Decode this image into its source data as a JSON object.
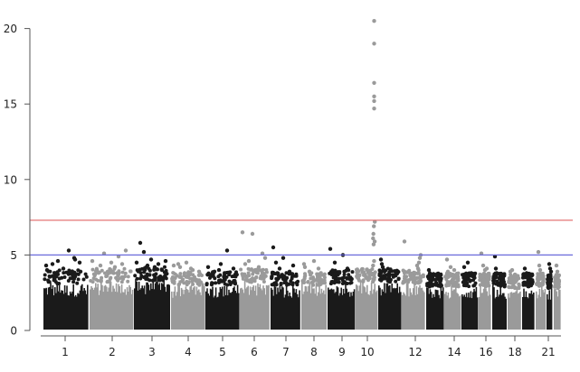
{
  "chart_data": {
    "type": "scatter",
    "subtype": "manhattan",
    "title": "",
    "xlabel": "",
    "ylabel": "",
    "ylim": [
      0,
      21
    ],
    "y_ticks": [
      0,
      5,
      10,
      15,
      20
    ],
    "x_tick_labels": [
      "1",
      "2",
      "3",
      "4",
      "5",
      "6",
      "7",
      "8",
      "9",
      "10",
      "12",
      "14",
      "16",
      "18",
      "21"
    ],
    "grid": false,
    "legend": "none",
    "threshold_lines": [
      {
        "value": 7.3,
        "color": "#e06666"
      },
      {
        "value": 5.0,
        "color": "#6b6bdb"
      }
    ],
    "colors": {
      "odd": "#1a1a1a",
      "even": "#9a9a9a",
      "axis": "#555555"
    },
    "chromosomes": [
      {
        "chr": "1",
        "color": "odd",
        "band_max": 3.1,
        "peaks": [
          4.3,
          4.5,
          4.8,
          5.3,
          4.1,
          4.6,
          4.4,
          4.0,
          3.9,
          4.7,
          3.8
        ]
      },
      {
        "chr": "2",
        "color": "even",
        "band_max": 3.2,
        "peaks": [
          4.6,
          5.3,
          4.4,
          4.9,
          4.2,
          4.5,
          3.9,
          5.1,
          4.3,
          4.0
        ]
      },
      {
        "chr": "3",
        "color": "odd",
        "band_max": 3.3,
        "peaks": [
          4.5,
          5.8,
          5.2,
          4.3,
          4.7,
          4.2,
          4.4,
          4.0,
          4.6
        ]
      },
      {
        "chr": "4",
        "color": "even",
        "band_max": 3.0,
        "peaks": [
          4.3,
          4.2,
          4.5,
          4.0,
          3.9,
          4.4,
          3.8,
          4.1
        ]
      },
      {
        "chr": "5",
        "color": "odd",
        "band_max": 3.0,
        "peaks": [
          4.2,
          3.9,
          4.4,
          5.3,
          4.1,
          3.8,
          4.0
        ]
      },
      {
        "chr": "6",
        "color": "even",
        "band_max": 3.2,
        "peaks": [
          6.5,
          6.4,
          5.1,
          4.6,
          4.2,
          4.4,
          4.0,
          4.8
        ]
      },
      {
        "chr": "7",
        "color": "odd",
        "band_max": 3.0,
        "peaks": [
          5.5,
          4.8,
          4.3,
          4.1,
          3.9,
          4.5
        ]
      },
      {
        "chr": "8",
        "color": "even",
        "band_max": 3.0,
        "peaks": [
          4.4,
          4.1,
          4.6,
          3.9,
          4.2
        ]
      },
      {
        "chr": "9",
        "color": "odd",
        "band_max": 3.1,
        "peaks": [
          5.4,
          5.0,
          4.5,
          4.1,
          3.8
        ]
      },
      {
        "chr": "10",
        "color": "even",
        "band_max": 3.2,
        "peaks": [
          20.5,
          19.0,
          16.4,
          15.5,
          15.2,
          14.7,
          7.2,
          6.9,
          6.4,
          6.1,
          5.9,
          5.7,
          4.6,
          4.3
        ]
      },
      {
        "chr": "11",
        "color": "odd",
        "band_max": 3.2,
        "peaks": [
          4.7,
          4.4,
          4.2,
          4.0,
          3.9
        ]
      },
      {
        "chr": "12",
        "color": "even",
        "band_max": 3.1,
        "peaks": [
          5.9,
          5.0,
          4.8,
          4.5,
          4.1,
          4.3
        ]
      },
      {
        "chr": "13",
        "color": "odd",
        "band_max": 2.9,
        "peaks": [
          4.0,
          3.8,
          3.7
        ]
      },
      {
        "chr": "14",
        "color": "even",
        "band_max": 2.9,
        "peaks": [
          4.7,
          4.2,
          4.0,
          3.9
        ]
      },
      {
        "chr": "15",
        "color": "odd",
        "band_max": 2.9,
        "peaks": [
          4.2,
          4.5,
          3.8
        ]
      },
      {
        "chr": "16",
        "color": "even",
        "band_max": 2.9,
        "peaks": [
          5.1,
          4.3,
          4.0,
          4.1
        ]
      },
      {
        "chr": "17",
        "color": "odd",
        "band_max": 2.9,
        "peaks": [
          4.9,
          4.1,
          3.8
        ]
      },
      {
        "chr": "18",
        "color": "even",
        "band_max": 2.8,
        "peaks": [
          3.9,
          3.7,
          4.0
        ]
      },
      {
        "chr": "19",
        "color": "odd",
        "band_max": 2.9,
        "peaks": [
          4.1,
          3.8
        ]
      },
      {
        "chr": "20",
        "color": "even",
        "band_max": 2.9,
        "peaks": [
          5.2,
          4.3,
          4.0
        ]
      },
      {
        "chr": "21",
        "color": "odd",
        "band_max": 2.8,
        "peaks": [
          4.4,
          4.1,
          3.9
        ]
      },
      {
        "chr": "22",
        "color": "even",
        "band_max": 2.8,
        "peaks": [
          4.3,
          3.9
        ]
      }
    ]
  }
}
